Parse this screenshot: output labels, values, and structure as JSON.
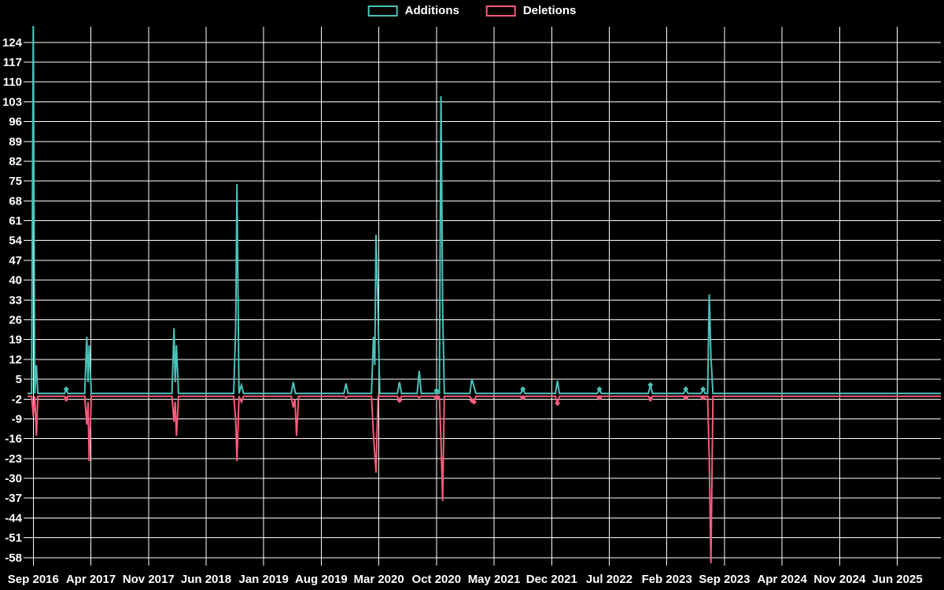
{
  "legend": {
    "items": [
      {
        "label": "Additions",
        "color": "#4bc2ba"
      },
      {
        "label": "Deletions",
        "color": "#f85c7c"
      }
    ]
  },
  "chart_data": {
    "type": "line",
    "title": "",
    "xlabel": "",
    "ylabel": "",
    "background_color": "#000000",
    "grid_color": "#ffffff",
    "text_color": "#ffffff",
    "grid": true,
    "legend_position": "top-center",
    "x_unit": "months since Sep 2016 (weekly samples)",
    "x_tick_positions": [
      0,
      7,
      14,
      21,
      28,
      35,
      42,
      49,
      56,
      63,
      70,
      77,
      84,
      91,
      98,
      105
    ],
    "x_tick_labels": [
      "Sep 2016",
      "Apr 2017",
      "Nov 2017",
      "Jun 2018",
      "Jan 2019",
      "Aug 2019",
      "Mar 2020",
      "Oct 2020",
      "May 2021",
      "Dec 2021",
      "Jul 2022",
      "Feb 2023",
      "Sep 2023",
      "Apr 2024",
      "Nov 2024",
      "Jun 2025"
    ],
    "y_ticks": [
      124,
      117,
      110,
      103,
      96,
      89,
      82,
      75,
      68,
      61,
      54,
      47,
      40,
      33,
      26,
      19,
      12,
      5,
      -2,
      -9,
      -16,
      -23,
      -30,
      -37,
      -44,
      -51,
      -58
    ],
    "xlim": [
      -0.7,
      110.3
    ],
    "ylim": [
      -60,
      129.5
    ],
    "series": [
      {
        "name": "Deletions",
        "color": "#f85c7c",
        "baseline": -1,
        "points": [
          [
            -0.7,
            -1
          ],
          [
            -0.2,
            -1
          ],
          [
            0,
            -8
          ],
          [
            0.18,
            -1
          ],
          [
            0.38,
            -15
          ],
          [
            0.55,
            -1
          ],
          [
            3.8,
            -1
          ],
          [
            4,
            -2
          ],
          [
            4.2,
            -1
          ],
          [
            6.25,
            -1
          ],
          [
            6.5,
            -11
          ],
          [
            6.65,
            -3
          ],
          [
            6.8,
            -24
          ],
          [
            7.05,
            -1
          ],
          [
            16.85,
            -1
          ],
          [
            17.1,
            -10
          ],
          [
            17.25,
            -3
          ],
          [
            17.4,
            -15
          ],
          [
            17.65,
            -1
          ],
          [
            24.35,
            -1
          ],
          [
            24.6,
            -9
          ],
          [
            24.75,
            -24
          ],
          [
            25.0,
            -1
          ],
          [
            25.3,
            -3
          ],
          [
            25.55,
            -1
          ],
          [
            31.35,
            -1
          ],
          [
            31.6,
            -5
          ],
          [
            31.8,
            -2
          ],
          [
            32.0,
            -15
          ],
          [
            32.25,
            -1
          ],
          [
            37.75,
            -1
          ],
          [
            38,
            -1.5
          ],
          [
            38.25,
            -1
          ],
          [
            41.1,
            -1
          ],
          [
            41.35,
            -15
          ],
          [
            41.65,
            -28
          ],
          [
            41.9,
            -1
          ],
          [
            44.25,
            -1
          ],
          [
            44.5,
            -2.5
          ],
          [
            44.75,
            -1
          ],
          [
            46.65,
            -1
          ],
          [
            46.9,
            -1.5
          ],
          [
            47.15,
            -1
          ],
          [
            48.8,
            -1
          ],
          [
            49,
            -1.5
          ],
          [
            49.2,
            -1
          ],
          [
            49.35,
            -1
          ],
          [
            49.55,
            -17
          ],
          [
            49.75,
            -38
          ],
          [
            49.95,
            -1
          ],
          [
            53.05,
            -1
          ],
          [
            53.3,
            -2.5
          ],
          [
            53.55,
            -3
          ],
          [
            53.8,
            -1
          ],
          [
            59.25,
            -1
          ],
          [
            59.5,
            -1.5
          ],
          [
            59.75,
            -1
          ],
          [
            63.45,
            -1
          ],
          [
            63.7,
            -3.5
          ],
          [
            63.95,
            -1
          ],
          [
            68.55,
            -1
          ],
          [
            68.8,
            -1.5
          ],
          [
            69.05,
            -1
          ],
          [
            74.75,
            -1
          ],
          [
            75,
            -2
          ],
          [
            75.25,
            -1
          ],
          [
            79.05,
            -1
          ],
          [
            79.3,
            -1.5
          ],
          [
            79.55,
            -1
          ],
          [
            81.15,
            -1
          ],
          [
            81.4,
            -1.5
          ],
          [
            81.65,
            -1
          ],
          [
            81.95,
            -1
          ],
          [
            82.15,
            -23
          ],
          [
            82.35,
            -60
          ],
          [
            82.6,
            -1
          ],
          [
            110.3,
            -1
          ]
        ],
        "markers": [
          [
            4,
            -2
          ],
          [
            44.5,
            -2.5
          ],
          [
            49,
            -1.5
          ],
          [
            53.3,
            -2.5
          ],
          [
            53.55,
            -3
          ],
          [
            59.5,
            -1.5
          ],
          [
            63.7,
            -3.5
          ],
          [
            68.8,
            -1.5
          ],
          [
            75,
            -2
          ],
          [
            79.3,
            -1.5
          ],
          [
            81.4,
            -1.5
          ]
        ]
      },
      {
        "name": "Additions",
        "color": "#4bc2ba",
        "baseline": 0,
        "points": [
          [
            -0.7,
            0
          ],
          [
            -0.2,
            0
          ],
          [
            0,
            132
          ],
          [
            0.18,
            0
          ],
          [
            0.38,
            10
          ],
          [
            0.55,
            0
          ],
          [
            3.8,
            0
          ],
          [
            4,
            1.5
          ],
          [
            4.2,
            0
          ],
          [
            6.25,
            0
          ],
          [
            6.5,
            20
          ],
          [
            6.65,
            4
          ],
          [
            6.8,
            17
          ],
          [
            7.05,
            0
          ],
          [
            16.85,
            0
          ],
          [
            17.1,
            23
          ],
          [
            17.25,
            4
          ],
          [
            17.4,
            17
          ],
          [
            17.65,
            0
          ],
          [
            24.35,
            0
          ],
          [
            24.6,
            23
          ],
          [
            24.75,
            74
          ],
          [
            25.0,
            0
          ],
          [
            25.3,
            3
          ],
          [
            25.55,
            0
          ],
          [
            31.35,
            0
          ],
          [
            31.6,
            4
          ],
          [
            31.85,
            0
          ],
          [
            37.75,
            0
          ],
          [
            38,
            3.5
          ],
          [
            38.25,
            0
          ],
          [
            41.1,
            0
          ],
          [
            41.35,
            20
          ],
          [
            41.5,
            10
          ],
          [
            41.65,
            56
          ],
          [
            41.85,
            35
          ],
          [
            42.1,
            0
          ],
          [
            44.25,
            0
          ],
          [
            44.5,
            4
          ],
          [
            44.75,
            0
          ],
          [
            46.65,
            0
          ],
          [
            46.9,
            8
          ],
          [
            47.15,
            0
          ],
          [
            48.8,
            0
          ],
          [
            49,
            1
          ],
          [
            49.2,
            0
          ],
          [
            49.35,
            0
          ],
          [
            49.55,
            105
          ],
          [
            49.75,
            30
          ],
          [
            49.95,
            0
          ],
          [
            53.05,
            0
          ],
          [
            53.3,
            5
          ],
          [
            53.55,
            2.5
          ],
          [
            53.8,
            0
          ],
          [
            59.25,
            0
          ],
          [
            59.5,
            1.5
          ],
          [
            59.75,
            0
          ],
          [
            63.45,
            0
          ],
          [
            63.7,
            4.5
          ],
          [
            63.95,
            0
          ],
          [
            68.55,
            0
          ],
          [
            68.8,
            1.5
          ],
          [
            69.05,
            0
          ],
          [
            74.75,
            0
          ],
          [
            75,
            3
          ],
          [
            75.25,
            0
          ],
          [
            79.05,
            0
          ],
          [
            79.3,
            1.5
          ],
          [
            79.55,
            0
          ],
          [
            81.15,
            0
          ],
          [
            81.4,
            1.5
          ],
          [
            81.65,
            0
          ],
          [
            81.95,
            0
          ],
          [
            82.15,
            35
          ],
          [
            82.35,
            13
          ],
          [
            82.6,
            0
          ],
          [
            110.3,
            0
          ]
        ],
        "markers": [
          [
            4,
            1.5
          ],
          [
            49,
            1
          ],
          [
            59.5,
            1.5
          ],
          [
            68.8,
            1.5
          ],
          [
            75,
            3
          ],
          [
            79.3,
            1.5
          ],
          [
            81.4,
            1.5
          ]
        ]
      }
    ]
  }
}
